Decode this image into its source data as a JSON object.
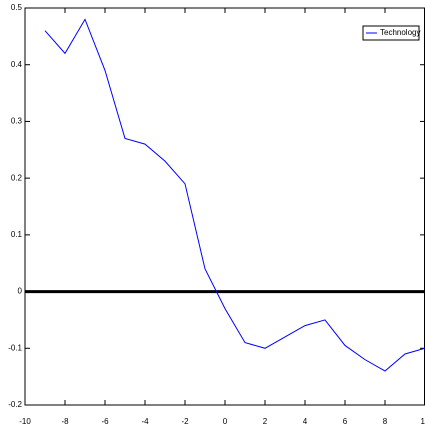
{
  "chart_data": {
    "type": "line",
    "x": [
      -9,
      -8,
      -7,
      -6,
      -5,
      -4,
      -3,
      -2,
      -1,
      0,
      1,
      2,
      3,
      4,
      5,
      6,
      7,
      8,
      9,
      10
    ],
    "series": [
      {
        "name": "Technology",
        "color": "#0000ff",
        "values": [
          0.46,
          0.42,
          0.48,
          0.39,
          0.27,
          0.26,
          0.23,
          0.19,
          0.04,
          -0.03,
          -0.09,
          -0.1,
          -0.08,
          -0.06,
          -0.05,
          -0.095,
          -0.12,
          -0.14,
          -0.11,
          -0.1
        ]
      }
    ],
    "xlim": [
      -10,
      10
    ],
    "xticks": [
      -10,
      -8,
      -6,
      -4,
      -2,
      0,
      2,
      4,
      6,
      8,
      10
    ],
    "ylim": [
      -0.2,
      0.5
    ],
    "yticks": [
      -0.2,
      -0.1,
      0,
      0.1,
      0.2,
      0.3,
      0.4,
      0.5
    ],
    "hline": 0,
    "legend": "top-right",
    "grid": false
  }
}
